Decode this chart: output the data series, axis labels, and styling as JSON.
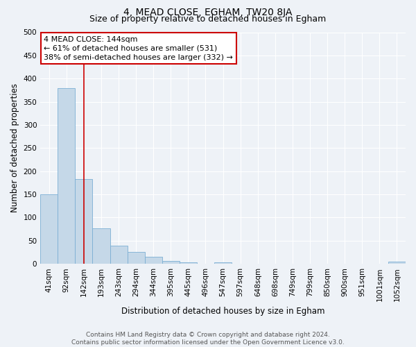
{
  "title": "4, MEAD CLOSE, EGHAM, TW20 8JA",
  "subtitle": "Size of property relative to detached houses in Egham",
  "xlabel": "Distribution of detached houses by size in Egham",
  "ylabel": "Number of detached properties",
  "bar_labels": [
    "41sqm",
    "92sqm",
    "142sqm",
    "193sqm",
    "243sqm",
    "294sqm",
    "344sqm",
    "395sqm",
    "445sqm",
    "496sqm",
    "547sqm",
    "597sqm",
    "648sqm",
    "698sqm",
    "749sqm",
    "799sqm",
    "850sqm",
    "900sqm",
    "951sqm",
    "1001sqm",
    "1052sqm"
  ],
  "bar_values": [
    150,
    380,
    183,
    77,
    39,
    25,
    15,
    6,
    3,
    0,
    3,
    0,
    0,
    0,
    0,
    0,
    0,
    0,
    0,
    0,
    5
  ],
  "bar_color": "#c5d8e8",
  "bar_edge_color": "#7bafd4",
  "vline_x": 2,
  "vline_color": "#cc0000",
  "annotation_line1": "4 MEAD CLOSE: 144sqm",
  "annotation_line2": "← 61% of detached houses are smaller (531)",
  "annotation_line3": "38% of semi-detached houses are larger (332) →",
  "annotation_box_color": "#cc0000",
  "annotation_box_bg": "#ffffff",
  "ylim": [
    0,
    500
  ],
  "yticks": [
    0,
    50,
    100,
    150,
    200,
    250,
    300,
    350,
    400,
    450,
    500
  ],
  "footer_line1": "Contains HM Land Registry data © Crown copyright and database right 2024.",
  "footer_line2": "Contains public sector information licensed under the Open Government Licence v3.0.",
  "bg_color": "#eef2f7",
  "grid_color": "#ffffff",
  "title_fontsize": 10,
  "subtitle_fontsize": 9,
  "axis_label_fontsize": 8.5,
  "tick_fontsize": 7.5,
  "footer_fontsize": 6.5,
  "annotation_fontsize": 8
}
